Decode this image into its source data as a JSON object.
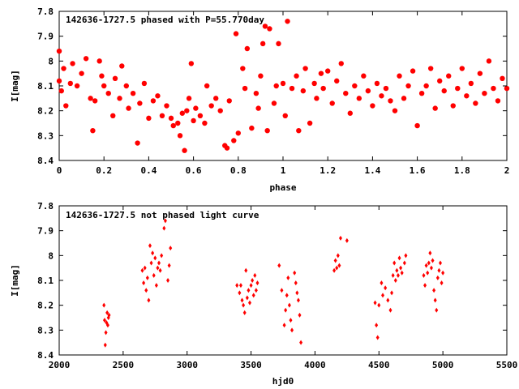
{
  "chart_data": [
    {
      "type": "scatter",
      "title": "142636-1727.5 phased with P=55.770day",
      "xlabel": "phase",
      "ylabel": "I[mag]",
      "xlim": [
        0,
        2
      ],
      "ylim": [
        8.4,
        7.8
      ],
      "y_inverted": true,
      "xticks": [
        "0",
        "0.2",
        "0.4",
        "0.6",
        "0.8",
        "1",
        "1.2",
        "1.4",
        "1.6",
        "1.8",
        "2"
      ],
      "yticks": [
        "7.8",
        "7.9",
        "8",
        "8.1",
        "8.2",
        "8.3",
        "8.4"
      ],
      "marker_color": "#ff0000",
      "marker": "filled-circle",
      "grid": false,
      "series": [
        {
          "points": [
            [
              0.0,
              8.08
            ],
            [
              0.0,
              7.96
            ],
            [
              0.01,
              8.12
            ],
            [
              0.02,
              8.03
            ],
            [
              0.03,
              8.18
            ],
            [
              0.05,
              8.09
            ],
            [
              0.06,
              8.01
            ],
            [
              0.08,
              8.1
            ],
            [
              0.1,
              8.05
            ],
            [
              0.12,
              7.99
            ],
            [
              0.14,
              8.15
            ],
            [
              0.15,
              8.28
            ],
            [
              0.16,
              8.16
            ],
            [
              0.18,
              8.0
            ],
            [
              0.19,
              8.06
            ],
            [
              0.2,
              8.1
            ],
            [
              0.22,
              8.13
            ],
            [
              0.24,
              8.22
            ],
            [
              0.25,
              8.07
            ],
            [
              0.27,
              8.15
            ],
            [
              0.28,
              8.02
            ],
            [
              0.3,
              8.1
            ],
            [
              0.31,
              8.19
            ],
            [
              0.33,
              8.13
            ],
            [
              0.35,
              8.33
            ],
            [
              0.36,
              8.17
            ],
            [
              0.38,
              8.09
            ],
            [
              0.4,
              8.23
            ],
            [
              0.42,
              8.16
            ],
            [
              0.44,
              8.14
            ],
            [
              0.46,
              8.22
            ],
            [
              0.48,
              8.18
            ],
            [
              0.5,
              8.23
            ],
            [
              0.51,
              8.26
            ],
            [
              0.53,
              8.25
            ],
            [
              0.54,
              8.3
            ],
            [
              0.55,
              8.21
            ],
            [
              0.56,
              8.36
            ],
            [
              0.57,
              8.2
            ],
            [
              0.58,
              8.15
            ],
            [
              0.59,
              8.01
            ],
            [
              0.6,
              8.24
            ],
            [
              0.61,
              8.19
            ],
            [
              0.63,
              8.22
            ],
            [
              0.65,
              8.25
            ],
            [
              0.66,
              8.1
            ],
            [
              0.68,
              8.18
            ],
            [
              0.7,
              8.15
            ],
            [
              0.72,
              8.2
            ],
            [
              0.74,
              8.34
            ],
            [
              0.75,
              8.35
            ],
            [
              0.76,
              8.16
            ],
            [
              0.78,
              8.32
            ],
            [
              0.79,
              7.89
            ],
            [
              0.8,
              8.29
            ],
            [
              0.82,
              8.03
            ],
            [
              0.83,
              8.11
            ],
            [
              0.84,
              7.95
            ],
            [
              0.86,
              8.27
            ],
            [
              0.88,
              8.13
            ],
            [
              0.89,
              8.19
            ],
            [
              0.9,
              8.06
            ],
            [
              0.91,
              7.93
            ],
            [
              0.92,
              7.86
            ],
            [
              0.93,
              8.28
            ],
            [
              0.94,
              7.87
            ],
            [
              0.96,
              8.17
            ],
            [
              0.97,
              8.1
            ],
            [
              0.98,
              7.93
            ],
            [
              1.0,
              8.09
            ],
            [
              1.01,
              8.22
            ],
            [
              1.02,
              7.84
            ],
            [
              1.04,
              8.11
            ],
            [
              1.06,
              8.06
            ],
            [
              1.07,
              8.28
            ],
            [
              1.09,
              8.12
            ],
            [
              1.1,
              8.03
            ],
            [
              1.12,
              8.25
            ],
            [
              1.14,
              8.09
            ],
            [
              1.15,
              8.15
            ],
            [
              1.17,
              8.05
            ],
            [
              1.18,
              8.11
            ],
            [
              1.2,
              8.04
            ],
            [
              1.22,
              8.17
            ],
            [
              1.24,
              8.08
            ],
            [
              1.26,
              8.01
            ],
            [
              1.28,
              8.13
            ],
            [
              1.3,
              8.21
            ],
            [
              1.32,
              8.1
            ],
            [
              1.34,
              8.15
            ],
            [
              1.36,
              8.06
            ],
            [
              1.38,
              8.12
            ],
            [
              1.4,
              8.18
            ],
            [
              1.42,
              8.09
            ],
            [
              1.44,
              8.14
            ],
            [
              1.46,
              8.11
            ],
            [
              1.48,
              8.16
            ],
            [
              1.5,
              8.2
            ],
            [
              1.52,
              8.06
            ],
            [
              1.54,
              8.15
            ],
            [
              1.56,
              8.1
            ],
            [
              1.58,
              8.04
            ],
            [
              1.6,
              8.26
            ],
            [
              1.62,
              8.13
            ],
            [
              1.64,
              8.1
            ],
            [
              1.66,
              8.03
            ],
            [
              1.68,
              8.19
            ],
            [
              1.7,
              8.08
            ],
            [
              1.72,
              8.12
            ],
            [
              1.74,
              8.06
            ],
            [
              1.76,
              8.18
            ],
            [
              1.78,
              8.11
            ],
            [
              1.8,
              8.03
            ],
            [
              1.82,
              8.14
            ],
            [
              1.84,
              8.09
            ],
            [
              1.86,
              8.17
            ],
            [
              1.88,
              8.05
            ],
            [
              1.9,
              8.13
            ],
            [
              1.92,
              8.0
            ],
            [
              1.94,
              8.11
            ],
            [
              1.96,
              8.16
            ],
            [
              1.98,
              8.07
            ],
            [
              2.0,
              8.11
            ]
          ]
        }
      ]
    },
    {
      "type": "scatter",
      "title": "142636-1727.5 not phased light curve",
      "xlabel": "hjd0",
      "ylabel": "I[mag]",
      "xlim": [
        2000,
        5500
      ],
      "ylim": [
        8.4,
        7.8
      ],
      "y_inverted": true,
      "xticks": [
        "2000",
        "2500",
        "3000",
        "3500",
        "4000",
        "4500",
        "5000",
        "5500"
      ],
      "yticks": [
        "7.8",
        "7.9",
        "8",
        "8.1",
        "8.2",
        "8.3",
        "8.4"
      ],
      "marker_color": "#ff0000",
      "marker": "diamond",
      "grid": false,
      "series": [
        {
          "points": [
            [
              2350,
              8.2
            ],
            [
              2355,
              8.26
            ],
            [
              2360,
              8.36
            ],
            [
              2365,
              8.31
            ],
            [
              2370,
              8.27
            ],
            [
              2375,
              8.23
            ],
            [
              2380,
              8.28
            ],
            [
              2385,
              8.25
            ],
            [
              2390,
              8.24
            ],
            [
              2650,
              8.06
            ],
            [
              2660,
              8.11
            ],
            [
              2670,
              8.05
            ],
            [
              2680,
              8.14
            ],
            [
              2690,
              8.09
            ],
            [
              2700,
              8.18
            ],
            [
              2710,
              7.96
            ],
            [
              2720,
              8.03
            ],
            [
              2730,
              7.99
            ],
            [
              2740,
              8.08
            ],
            [
              2750,
              8.01
            ],
            [
              2760,
              8.12
            ],
            [
              2770,
              8.05
            ],
            [
              2780,
              8.03
            ],
            [
              2790,
              8.06
            ],
            [
              2800,
              8.0
            ],
            [
              2820,
              7.89
            ],
            [
              2830,
              7.86
            ],
            [
              2850,
              8.1
            ],
            [
              2860,
              8.04
            ],
            [
              2870,
              7.97
            ],
            [
              3390,
              8.12
            ],
            [
              3410,
              8.15
            ],
            [
              3420,
              8.12
            ],
            [
              3430,
              8.18
            ],
            [
              3440,
              8.2
            ],
            [
              3450,
              8.23
            ],
            [
              3460,
              8.06
            ],
            [
              3470,
              8.17
            ],
            [
              3480,
              8.14
            ],
            [
              3490,
              8.19
            ],
            [
              3500,
              8.12
            ],
            [
              3510,
              8.1
            ],
            [
              3520,
              8.16
            ],
            [
              3530,
              8.08
            ],
            [
              3540,
              8.14
            ],
            [
              3550,
              8.11
            ],
            [
              3720,
              8.04
            ],
            [
              3740,
              8.14
            ],
            [
              3760,
              8.28
            ],
            [
              3770,
              8.22
            ],
            [
              3780,
              8.16
            ],
            [
              3790,
              8.09
            ],
            [
              3800,
              8.2
            ],
            [
              3810,
              8.26
            ],
            [
              3820,
              8.3
            ],
            [
              3840,
              8.07
            ],
            [
              3850,
              8.11
            ],
            [
              3860,
              8.15
            ],
            [
              3870,
              8.18
            ],
            [
              3880,
              8.24
            ],
            [
              3890,
              8.35
            ],
            [
              4150,
              8.06
            ],
            [
              4160,
              8.02
            ],
            [
              4170,
              8.05
            ],
            [
              4180,
              8.0
            ],
            [
              4190,
              8.04
            ],
            [
              4200,
              7.93
            ],
            [
              4250,
              7.94
            ],
            [
              4470,
              8.19
            ],
            [
              4480,
              8.28
            ],
            [
              4490,
              8.33
            ],
            [
              4500,
              8.2
            ],
            [
              4520,
              8.11
            ],
            [
              4530,
              8.16
            ],
            [
              4550,
              8.13
            ],
            [
              4570,
              8.18
            ],
            [
              4590,
              8.22
            ],
            [
              4600,
              8.15
            ],
            [
              4610,
              8.08
            ],
            [
              4620,
              8.03
            ],
            [
              4630,
              8.1
            ],
            [
              4640,
              8.06
            ],
            [
              4650,
              8.08
            ],
            [
              4660,
              8.01
            ],
            [
              4670,
              8.05
            ],
            [
              4680,
              8.07
            ],
            [
              4700,
              8.03
            ],
            [
              4710,
              8.0
            ],
            [
              4850,
              8.08
            ],
            [
              4860,
              8.12
            ],
            [
              4870,
              8.04
            ],
            [
              4880,
              8.07
            ],
            [
              4890,
              8.03
            ],
            [
              4900,
              7.99
            ],
            [
              4910,
              8.05
            ],
            [
              4920,
              8.02
            ],
            [
              4930,
              8.14
            ],
            [
              4940,
              8.18
            ],
            [
              4950,
              8.22
            ],
            [
              4960,
              8.09
            ],
            [
              4970,
              8.06
            ],
            [
              4980,
              8.03
            ],
            [
              4990,
              8.11
            ],
            [
              5000,
              8.07
            ]
          ]
        }
      ]
    }
  ]
}
